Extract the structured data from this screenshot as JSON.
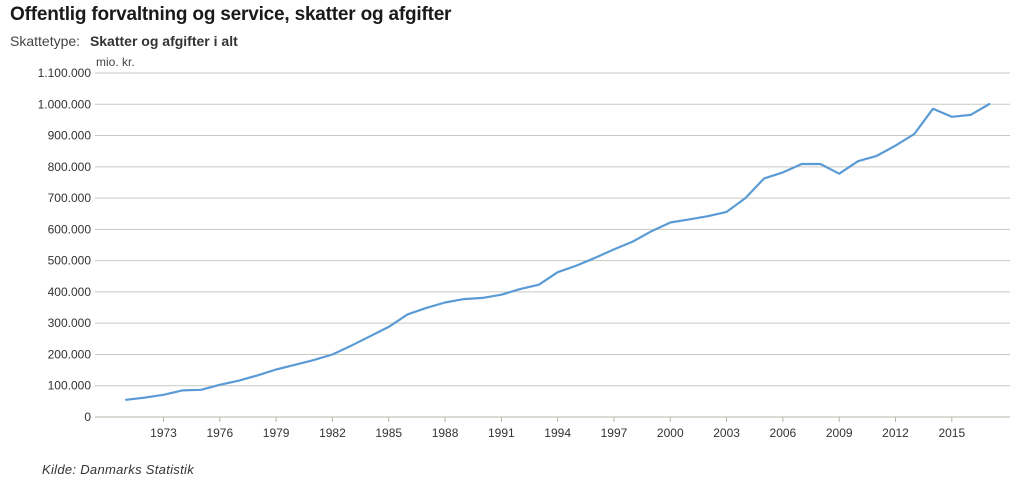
{
  "header": {
    "title": "Offentlig forvaltning og service, skatter og afgifter",
    "filter_label": "Skattetype:",
    "filter_value": "Skatter og afgifter i alt",
    "unit": "mio. kr."
  },
  "footer": {
    "source": "Kilde: Danmarks Statistik"
  },
  "colors": {
    "line": "#5b9bd5",
    "grid": "#c9c9c0",
    "axis": "#b5b5aa"
  },
  "chart_data": {
    "type": "line",
    "title": "Offentlig forvaltning og service, skatter og afgifter",
    "xlabel": "",
    "ylabel": "mio. kr.",
    "xlim": [
      1970,
      2018
    ],
    "ylim": [
      0,
      1100000
    ],
    "y_ticks": [
      0,
      100000,
      200000,
      300000,
      400000,
      500000,
      600000,
      700000,
      800000,
      900000,
      1000000,
      1100000
    ],
    "y_tick_labels": [
      "0",
      "100.000",
      "200.000",
      "300.000",
      "400.000",
      "500.000",
      "600.000",
      "700.000",
      "800.000",
      "900.000",
      "1.000.000",
      "1.100.000"
    ],
    "x_ticks": [
      1973,
      1976,
      1979,
      1982,
      1985,
      1988,
      1991,
      1994,
      1997,
      2000,
      2003,
      2006,
      2009,
      2012,
      2015
    ],
    "grid": true,
    "legend": "none",
    "x": [
      1971,
      1972,
      1973,
      1974,
      1975,
      1976,
      1977,
      1978,
      1979,
      1980,
      1981,
      1982,
      1983,
      1984,
      1985,
      1986,
      1987,
      1988,
      1989,
      1990,
      1991,
      1992,
      1993,
      1994,
      1995,
      1996,
      1997,
      1998,
      1999,
      2000,
      2001,
      2002,
      2003,
      2004,
      2005,
      2006,
      2007,
      2008,
      2009,
      2010,
      2011,
      2012,
      2013,
      2014,
      2015,
      2016,
      2017
    ],
    "series": [
      {
        "values": [
          55000,
          62000,
          71000,
          85000,
          87000,
          103000,
          116000,
          133000,
          152000,
          167000,
          182000,
          200000,
          228000,
          258000,
          288000,
          328000,
          349000,
          366000,
          377000,
          381000,
          391000,
          409000,
          423000,
          463000,
          484000,
          509000,
          536000,
          561000,
          594000,
          622000,
          632000,
          642000,
          656000,
          700000,
          763000,
          782000,
          809000,
          809000,
          778000,
          818000,
          835000,
          868000,
          905000,
          986000,
          960000,
          966000,
          1001000
        ]
      }
    ]
  }
}
